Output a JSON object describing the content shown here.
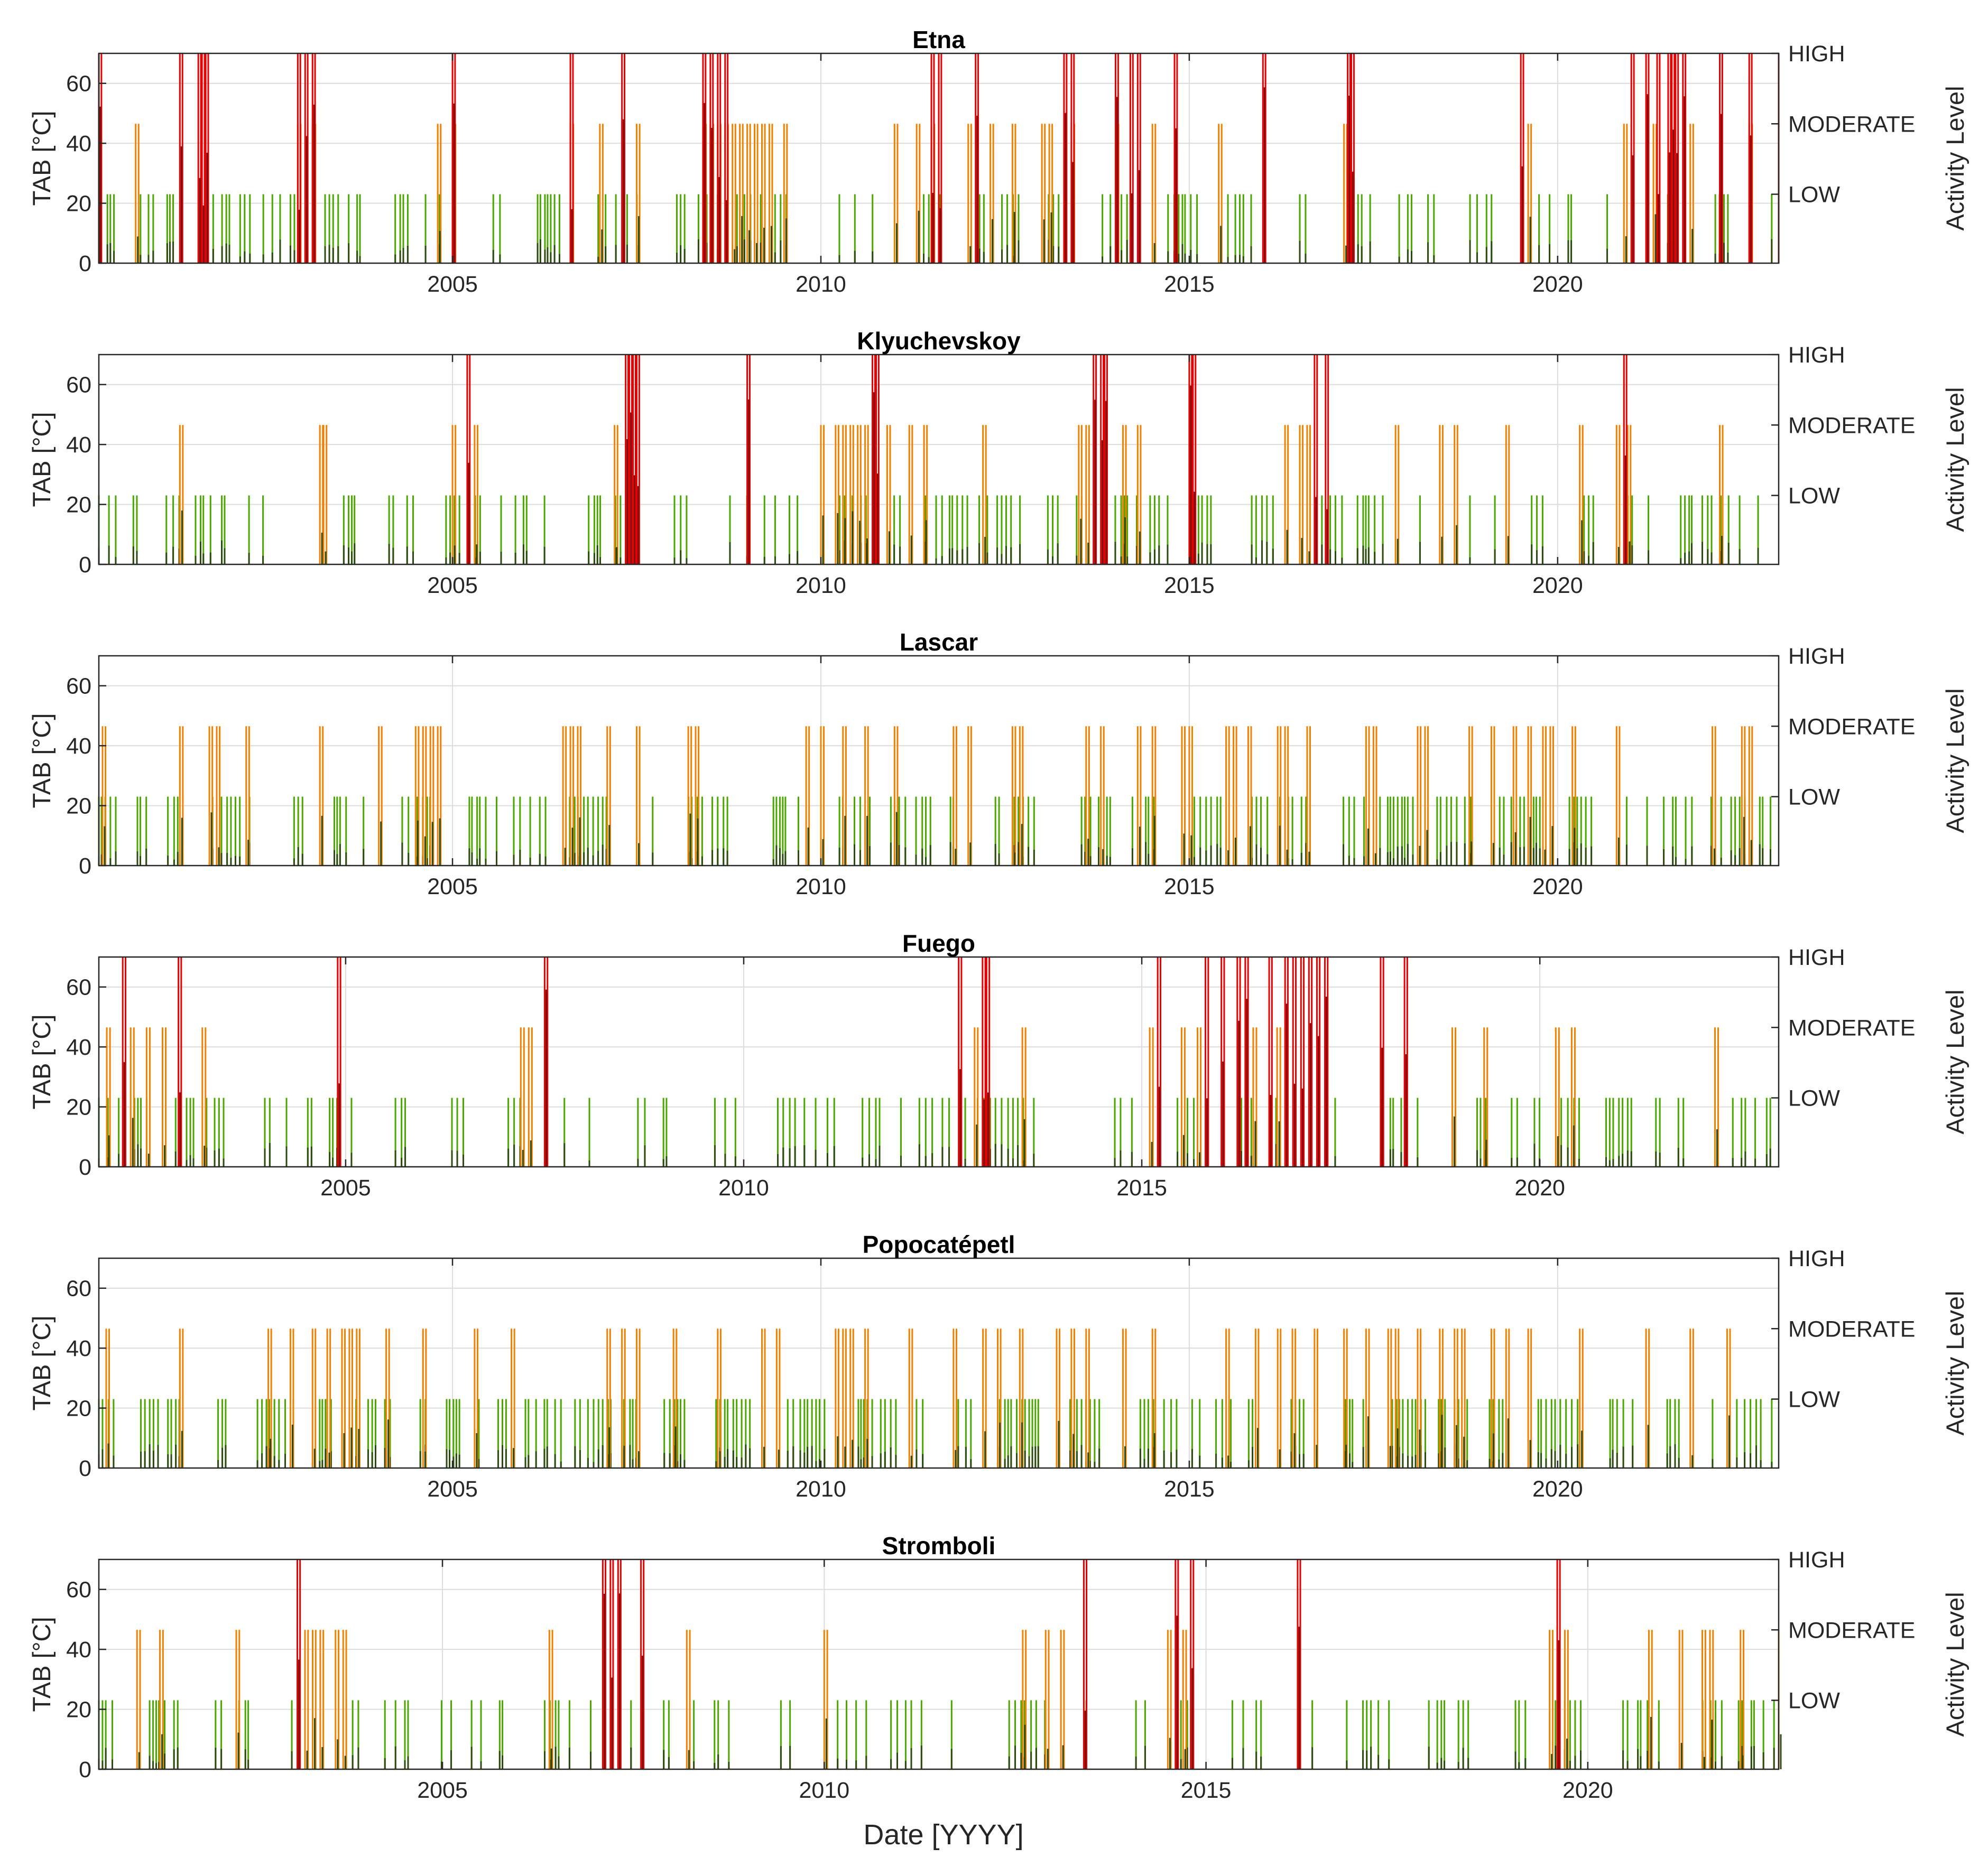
{
  "figure": {
    "xlabel": "Date [YYYY]"
  },
  "style": {
    "bar_colors": {
      "LOW": "#4ca600",
      "MODERATE": "#f08000",
      "HIGH": "#e60000"
    },
    "tab_marker_color": "#2d4a12",
    "grid_color": "#dcdcdc",
    "axis_color": "#262626"
  },
  "chart_data": [
    {
      "type": "bar",
      "title": "Etna",
      "ylabel": "TAB [°C]",
      "y2label": "Activity Level",
      "ylim": [
        0,
        70
      ],
      "yticks": [
        "0",
        "20",
        "40",
        "60"
      ],
      "xlim": [
        2000.2,
        2023.0
      ],
      "xticks": [
        "2005",
        "2010",
        "2015",
        "2020"
      ],
      "y2ticks": [
        "LOW",
        "MODERATE",
        "HIGH"
      ],
      "activity_levels": {
        "LOW": 23,
        "MODERATE": 46.5,
        "HIGH": 70
      },
      "series_note": "vertical bars = detected activity level per acquisition date; dark short bars = TAB value",
      "high_dates": [
        2000.2,
        2001.3,
        2001.55,
        2001.6,
        2001.65,
        2002.9,
        2003.0,
        2003.1,
        2005.0,
        2006.6,
        2007.3,
        2008.4,
        2008.5,
        2008.6,
        2008.7,
        2011.5,
        2011.6,
        2012.1,
        2013.3,
        2013.4,
        2014.0,
        2014.2,
        2014.3,
        2014.8,
        2016.0,
        2017.15,
        2017.2,
        2019.5,
        2021.0,
        2021.2,
        2021.35,
        2021.5,
        2021.55,
        2021.6,
        2021.7,
        2022.2,
        2022.6,
        2023.0
      ],
      "moderate_dates": [
        2000.7,
        2002.9,
        2003.1,
        2004.8,
        2005.0,
        2006.6,
        2007.0,
        2007.5,
        2008.4,
        2008.5,
        2008.6,
        2008.7,
        2008.8,
        2008.9,
        2009.0,
        2009.1,
        2009.2,
        2009.3,
        2009.5,
        2011.0,
        2011.3,
        2011.5,
        2012.0,
        2012.3,
        2012.6,
        2013.0,
        2013.1,
        2013.4,
        2014.0,
        2014.5,
        2015.4,
        2017.1,
        2019.6,
        2020.9,
        2021.3,
        2021.8,
        2022.6
      ],
      "low_range": [
        2000.2,
        2023.0
      ],
      "low_density": 0.55,
      "seed": 11
    },
    {
      "type": "bar",
      "title": "Klyuchevskoy",
      "ylabel": "TAB [°C]",
      "y2label": "Activity Level",
      "ylim": [
        0,
        70
      ],
      "yticks": [
        "0",
        "20",
        "40",
        "60"
      ],
      "xlim": [
        2000.2,
        2023.0
      ],
      "xticks": [
        "2005",
        "2010",
        "2015",
        "2020"
      ],
      "y2ticks": [
        "LOW",
        "MODERATE",
        "HIGH"
      ],
      "activity_levels": {
        "LOW": 23,
        "MODERATE": 46.5,
        "HIGH": 70
      },
      "series_note": "vertical bars = detected activity level per acquisition date; dark short bars = TAB value",
      "high_dates": [
        2005.2,
        2007.35,
        2007.4,
        2007.45,
        2007.5,
        2009.0,
        2010.7,
        2010.75,
        2013.7,
        2013.8,
        2013.85,
        2015.0,
        2015.05,
        2016.7,
        2016.85,
        2020.9
      ],
      "moderate_dates": [
        2001.3,
        2003.2,
        2003.25,
        2005.0,
        2005.3,
        2007.2,
        2010.0,
        2010.2,
        2010.3,
        2010.4,
        2010.5,
        2010.6,
        2010.9,
        2011.2,
        2011.4,
        2012.2,
        2013.5,
        2013.6,
        2014.1,
        2014.3,
        2016.3,
        2016.5,
        2016.6,
        2017.8,
        2018.4,
        2018.6,
        2019.3,
        2020.3,
        2020.8,
        2020.95,
        2022.2
      ],
      "low_range": [
        2000.2,
        2023.0
      ],
      "low_density": 0.6,
      "seed": 23
    },
    {
      "type": "bar",
      "title": "Lascar",
      "ylabel": "TAB [°C]",
      "y2label": "Activity Level",
      "ylim": [
        0,
        70
      ],
      "yticks": [
        "0",
        "20",
        "40",
        "60"
      ],
      "xlim": [
        2000.2,
        2023.0
      ],
      "xticks": [
        "2005",
        "2010",
        "2015",
        "2020"
      ],
      "y2ticks": [
        "LOW",
        "MODERATE",
        "HIGH"
      ],
      "activity_levels": {
        "LOW": 23,
        "MODERATE": 46.5,
        "HIGH": 70
      },
      "series_note": "vertical bars = detected activity level per acquisition date; dark short bars = TAB value",
      "high_dates": [],
      "moderate_dates": [
        2000.25,
        2001.3,
        2001.7,
        2001.8,
        2002.2,
        2003.2,
        2004.0,
        2004.5,
        2004.6,
        2004.7,
        2004.8,
        2006.5,
        2006.6,
        2006.7,
        2007.1,
        2007.5,
        2008.2,
        2008.3,
        2009.8,
        2010.0,
        2010.3,
        2010.6,
        2011.0,
        2011.8,
        2012.0,
        2012.6,
        2012.7,
        2013.6,
        2013.8,
        2014.3,
        2014.5,
        2014.9,
        2015.0,
        2015.5,
        2015.6,
        2015.8,
        2016.2,
        2016.3,
        2016.6,
        2017.4,
        2017.5,
        2018.1,
        2018.2,
        2018.8,
        2019.1,
        2019.4,
        2019.6,
        2019.8,
        2019.9,
        2020.2,
        2020.8,
        2022.1,
        2022.5,
        2022.6
      ],
      "low_range": [
        2000.2,
        2023.0
      ],
      "low_density": 0.75,
      "seed": 37
    },
    {
      "type": "bar",
      "title": "Fuego",
      "ylabel": "TAB [°C]",
      "y2label": "Activity Level",
      "ylim": [
        0,
        70
      ],
      "yticks": [
        "0",
        "20",
        "40",
        "60"
      ],
      "xlim": [
        2001.9,
        2023.0
      ],
      "xticks": [
        "2005",
        "2010",
        "2015",
        "2020"
      ],
      "y2ticks": [
        "LOW",
        "MODERATE",
        "HIGH"
      ],
      "activity_levels": {
        "LOW": 23,
        "MODERATE": 46.5,
        "HIGH": 70
      },
      "series_note": "vertical bars = detected activity level per acquisition date; dark short bars = TAB value",
      "high_dates": [
        2002.2,
        2002.9,
        2004.9,
        2007.5,
        2012.7,
        2013.0,
        2013.05,
        2015.2,
        2015.8,
        2016.0,
        2016.2,
        2016.3,
        2016.6,
        2016.8,
        2016.9,
        2017.0,
        2017.1,
        2017.2,
        2017.3,
        2018.0,
        2018.3
      ],
      "moderate_dates": [
        2002.0,
        2002.3,
        2002.5,
        2002.7,
        2003.2,
        2007.2,
        2007.3,
        2012.9,
        2013.5,
        2015.1,
        2015.5,
        2015.7,
        2016.4,
        2016.7,
        2018.9,
        2019.3,
        2020.2,
        2020.4,
        2022.2
      ],
      "low_range": [
        2001.9,
        2023.0
      ],
      "low_density": 0.5,
      "seed": 53
    },
    {
      "type": "bar",
      "title": "Popocatépetl",
      "ylabel": "TAB [°C]",
      "y2label": "Activity Level",
      "ylim": [
        0,
        70
      ],
      "yticks": [
        "0",
        "20",
        "40",
        "60"
      ],
      "xlim": [
        2000.2,
        2023.0
      ],
      "xticks": [
        "2005",
        "2010",
        "2015",
        "2020"
      ],
      "y2ticks": [
        "LOW",
        "MODERATE",
        "HIGH"
      ],
      "activity_levels": {
        "LOW": 23,
        "MODERATE": 46.5,
        "HIGH": 70
      },
      "series_note": "vertical bars = detected activity level per acquisition date; dark short bars = TAB value",
      "high_dates": [],
      "moderate_dates": [
        2000.3,
        2001.3,
        2002.5,
        2002.8,
        2003.1,
        2003.3,
        2003.5,
        2003.6,
        2003.7,
        2004.1,
        2004.6,
        2005.3,
        2005.8,
        2007.1,
        2007.3,
        2007.5,
        2008.0,
        2008.6,
        2009.2,
        2009.4,
        2010.2,
        2010.3,
        2010.4,
        2010.6,
        2011.2,
        2011.8,
        2012.2,
        2012.4,
        2012.7,
        2013.2,
        2013.4,
        2013.6,
        2014.1,
        2014.5,
        2015.5,
        2015.9,
        2016.2,
        2016.4,
        2016.7,
        2017.1,
        2017.4,
        2017.7,
        2017.8,
        2018.1,
        2018.4,
        2018.6,
        2018.7,
        2019.1,
        2019.3,
        2019.6,
        2020.3,
        2021.2,
        2021.8,
        2022.3
      ],
      "low_range": [
        2000.2,
        2023.0
      ],
      "low_density": 0.8,
      "seed": 71
    },
    {
      "type": "bar",
      "title": "Stromboli",
      "ylabel": "TAB [°C]",
      "y2label": "Activity Level",
      "ylim": [
        0,
        70
      ],
      "yticks": [
        "0",
        "20",
        "40",
        "60"
      ],
      "xlim": [
        2000.5,
        2022.5
      ],
      "xticks": [
        "2005",
        "2010",
        "2015",
        "2020"
      ],
      "y2ticks": [
        "LOW",
        "MODERATE",
        "HIGH"
      ],
      "activity_levels": {
        "LOW": 23,
        "MODERATE": 46.5,
        "HIGH": 70
      },
      "series_note": "vertical bars = detected activity level per acquisition date; dark short bars = TAB value",
      "high_dates": [
        2003.1,
        2007.1,
        2007.2,
        2007.3,
        2007.6,
        2013.4,
        2014.6,
        2014.8,
        2016.2,
        2019.6
      ],
      "moderate_dates": [
        2001.0,
        2001.3,
        2002.3,
        2003.2,
        2003.3,
        2003.4,
        2003.6,
        2003.7,
        2006.4,
        2008.2,
        2010.0,
        2012.6,
        2012.9,
        2013.1,
        2014.5,
        2014.7,
        2019.5,
        2019.7,
        2020.8,
        2021.2,
        2021.5,
        2021.6,
        2022.0,
        2022.5
      ],
      "low_range": [
        2000.5,
        2022.5
      ],
      "low_density": 0.6,
      "seed": 97
    }
  ]
}
